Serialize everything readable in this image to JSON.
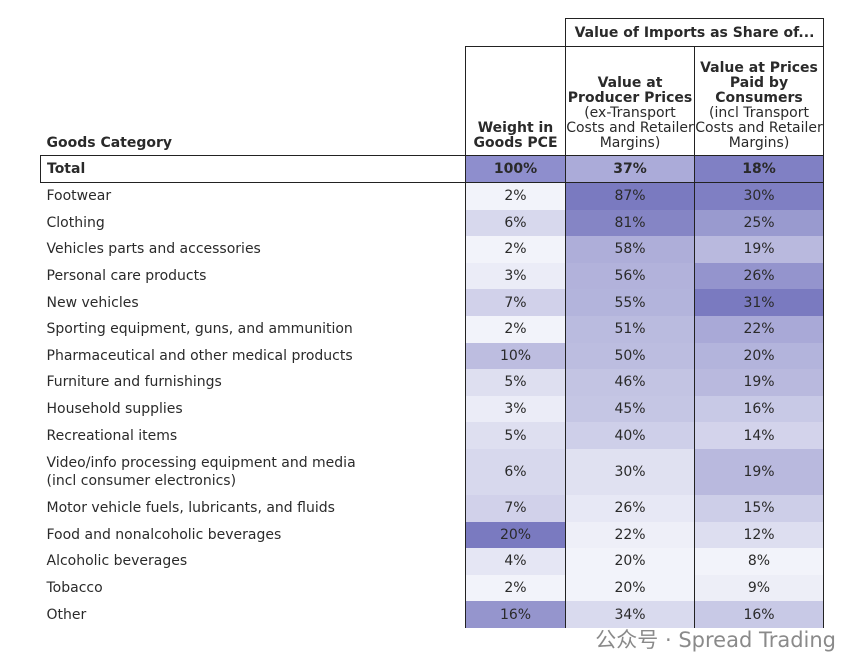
{
  "header": {
    "group": "Value of Imports as Share of...",
    "columns": [
      {
        "title": "Goods Category"
      },
      {
        "title": "Weight in Goods PCE"
      },
      {
        "title": "Value at Producer Prices",
        "note": "(ex-Transport Costs and Retailer Margins)"
      },
      {
        "title": "Value at Prices Paid by Consumers",
        "note": "(incl Transport Costs and Retailer Margins)"
      }
    ]
  },
  "table": {
    "total": [
      "Total",
      "100%",
      "37%",
      "18%"
    ],
    "rows": [
      [
        "Footwear",
        "2%",
        "87%",
        "30%"
      ],
      [
        "Clothing",
        "6%",
        "81%",
        "25%"
      ],
      [
        "Vehicles parts and accessories",
        "2%",
        "58%",
        "19%"
      ],
      [
        "Personal care products",
        "3%",
        "56%",
        "26%"
      ],
      [
        "New vehicles",
        "7%",
        "55%",
        "31%"
      ],
      [
        "Sporting equipment, guns, and ammunition",
        "2%",
        "51%",
        "22%"
      ],
      [
        "Pharmaceutical and other medical products",
        "10%",
        "50%",
        "20%"
      ],
      [
        "Furniture and furnishings",
        "5%",
        "46%",
        "19%"
      ],
      [
        "Household supplies",
        "3%",
        "45%",
        "16%"
      ],
      [
        "Recreational items",
        "5%",
        "40%",
        "14%"
      ],
      [
        "Video/info processing equipment and media\n(incl consumer electronics)",
        "6%",
        "30%",
        "19%"
      ],
      [
        "Motor vehicle fuels, lubricants, and fluids",
        "7%",
        "26%",
        "15%"
      ],
      [
        "Food and nonalcoholic beverages",
        "20%",
        "22%",
        "12%"
      ],
      [
        "Alcoholic beverages",
        "4%",
        "20%",
        "8%"
      ],
      [
        "Tobacco",
        "2%",
        "20%",
        "9%"
      ],
      [
        "Other",
        "16%",
        "34%",
        "16%"
      ]
    ]
  },
  "watermark": "公众号 · Spread Trading"
}
